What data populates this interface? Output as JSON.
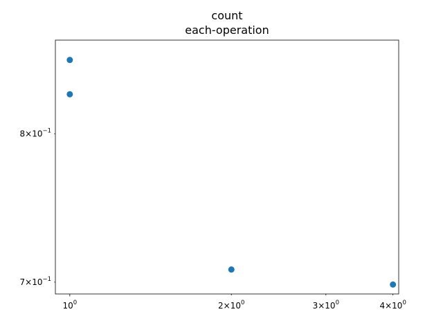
{
  "chart_data": {
    "type": "scatter",
    "title": "count",
    "subtitle": "each-operation",
    "xlabel": "",
    "ylabel": "",
    "xscale": "log",
    "yscale": "log",
    "xlim": [
      0.94,
      4.1
    ],
    "ylim": [
      0.6926,
      0.8704
    ],
    "grid": false,
    "series": [
      {
        "color": "#1f77b4",
        "points": [
          {
            "x": 1,
            "y": 0.855
          },
          {
            "x": 1,
            "y": 0.829
          },
          {
            "x": 2,
            "y": 0.708
          },
          {
            "x": 4,
            "y": 0.6985
          }
        ]
      }
    ],
    "x_ticks": [
      {
        "value": 1,
        "base": "10",
        "exp": "0"
      },
      {
        "value": 2,
        "coef": "2",
        "base": "10",
        "exp": "0"
      },
      {
        "value": 3,
        "coef": "3",
        "base": "10",
        "exp": "0"
      },
      {
        "value": 4,
        "coef": "4",
        "base": "10",
        "exp": "0"
      }
    ],
    "y_ticks": [
      {
        "value": 0.8,
        "coef": "8",
        "base": "10",
        "exp": "−1"
      },
      {
        "value": 0.7,
        "coef": "7",
        "base": "10",
        "exp": "−1"
      }
    ]
  }
}
